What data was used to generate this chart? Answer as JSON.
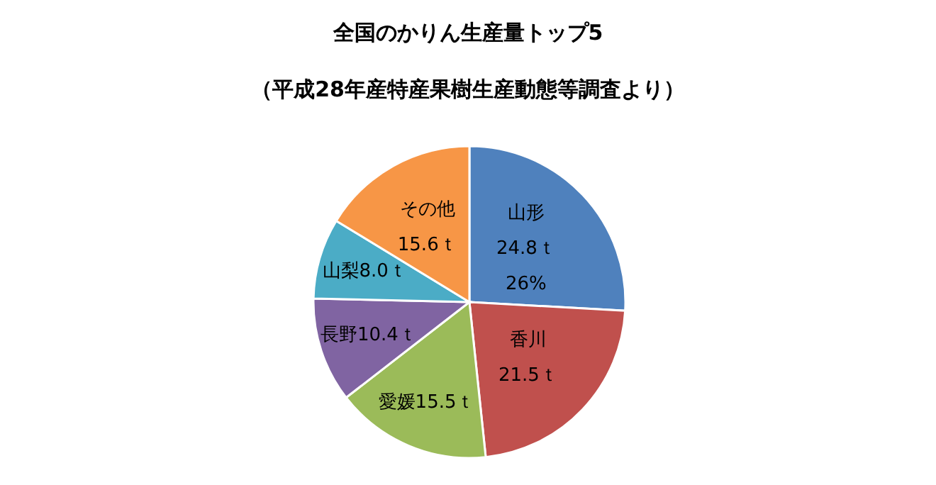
{
  "chart_data": {
    "type": "pie",
    "title": "全国のかりん生産量トップ5",
    "subtitle": "（平成28年産特産果樹生産動態等調査より）",
    "categories": [
      "山形",
      "香川",
      "愛媛",
      "長野",
      "山梨",
      "その他"
    ],
    "values": [
      24.8,
      21.5,
      15.5,
      10.4,
      8.0,
      15.6
    ],
    "colors": [
      "#4f81bd",
      "#c0504d",
      "#9bbb59",
      "#8064a2",
      "#4bacc6",
      "#f79646"
    ],
    "value_labels": [
      "24.8ｔ\n26%",
      "21.5ｔ",
      "15.5ｔ",
      "10.4ｔ",
      "8.0ｔ",
      "15.6ｔ"
    ]
  }
}
